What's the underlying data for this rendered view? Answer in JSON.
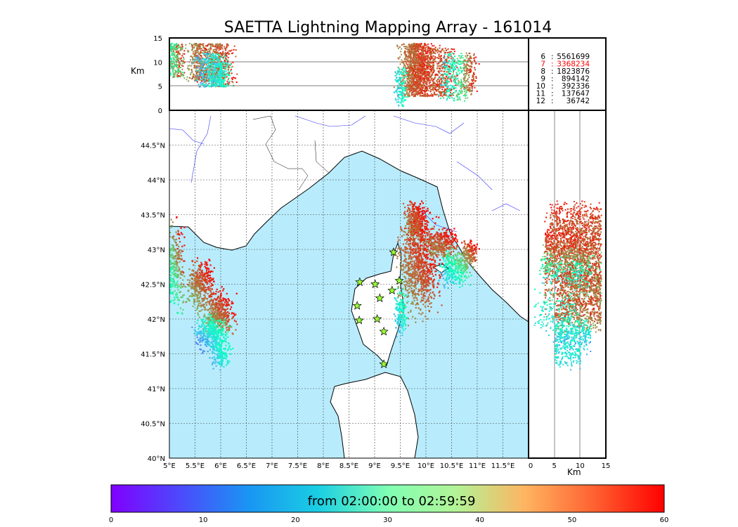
{
  "chart_data": {
    "type": "scatter",
    "title": "SAETTA Lightning Mapping Array - 161014",
    "map": {
      "xlim": [
        5,
        12
      ],
      "ylim": [
        40,
        45
      ],
      "xticks": [
        "5°E",
        "5.5°E",
        "6°E",
        "6.5°E",
        "7°E",
        "7.5°E",
        "8°E",
        "8.5°E",
        "9°E",
        "9.5°E",
        "10°E",
        "10.5°E",
        "11°E",
        "11.5°E"
      ],
      "yticks": [
        "40°N",
        "40.5°N",
        "41°N",
        "41.5°N",
        "42°N",
        "42.5°N",
        "43°N",
        "43.5°N",
        "44°N",
        "44.5°N"
      ],
      "grid": true
    },
    "top_panel": {
      "ylabel": "Km",
      "ylim": [
        0,
        15
      ],
      "yticks": [
        "0",
        "5",
        "10",
        "15"
      ]
    },
    "right_panel": {
      "xlabel": "Km",
      "xlim": [
        0,
        15
      ],
      "xticks": [
        "0",
        "5",
        "10",
        "15"
      ]
    },
    "legend": {
      "placement": "top-right",
      "entries": [
        {
          "label": "6",
          "count": "5561699",
          "highlight": false
        },
        {
          "label": "7",
          "count": "3368234",
          "highlight": true
        },
        {
          "label": "8",
          "count": "1823876",
          "highlight": false
        },
        {
          "label": "9",
          "count": "894142",
          "highlight": false
        },
        {
          "label": "10",
          "count": "392336",
          "highlight": false
        },
        {
          "label": "11",
          "count": "137647",
          "highlight": false
        },
        {
          "label": "12",
          "count": "36742",
          "highlight": false
        }
      ],
      "highlight_color": "#ff0000"
    },
    "colorbar": {
      "label": "from 02:00:00 to 02:59:59",
      "range": [
        0,
        60
      ],
      "ticks": [
        "0",
        "10",
        "20",
        "30",
        "40",
        "50",
        "60"
      ],
      "colormap": "rainbow"
    },
    "stations": [
      [
        8.71,
        42.53
      ],
      [
        9.01,
        42.5
      ],
      [
        9.1,
        42.3
      ],
      [
        8.66,
        42.19
      ],
      [
        8.7,
        41.98
      ],
      [
        9.05,
        42.0
      ],
      [
        9.18,
        41.82
      ],
      [
        9.34,
        42.41
      ],
      [
        9.48,
        42.55
      ],
      [
        9.37,
        42.96
      ],
      [
        9.18,
        41.35
      ]
    ],
    "clusters": [
      {
        "lon": 5.1,
        "lat": 42.75,
        "slon": 0.09,
        "slat": 0.3,
        "t": [
          25,
          60
        ],
        "n": 300,
        "alt": [
          7,
          14
        ]
      },
      {
        "lon": 5.6,
        "lat": 42.5,
        "slon": 0.12,
        "slat": 0.16,
        "t": [
          45,
          60
        ],
        "n": 400,
        "alt": [
          6,
          14
        ]
      },
      {
        "lon": 5.95,
        "lat": 42.1,
        "slon": 0.14,
        "slat": 0.14,
        "t": [
          45,
          60
        ],
        "n": 450,
        "alt": [
          5,
          14
        ]
      },
      {
        "lon": 5.8,
        "lat": 41.8,
        "slon": 0.16,
        "slat": 0.12,
        "t": [
          10,
          35
        ],
        "n": 350,
        "alt": [
          5,
          12
        ]
      },
      {
        "lon": 5.98,
        "lat": 41.5,
        "slon": 0.08,
        "slat": 0.1,
        "t": [
          15,
          30
        ],
        "n": 150,
        "alt": [
          5,
          10
        ]
      },
      {
        "lon": 9.8,
        "lat": 43.4,
        "slon": 0.1,
        "slat": 0.14,
        "t": [
          48,
          60
        ],
        "n": 450,
        "alt": [
          4,
          14
        ]
      },
      {
        "lon": 9.85,
        "lat": 42.75,
        "slon": 0.18,
        "slat": 0.3,
        "t": [
          48,
          60
        ],
        "n": 900,
        "alt": [
          3,
          14
        ]
      },
      {
        "lon": 10.3,
        "lat": 43.1,
        "slon": 0.15,
        "slat": 0.1,
        "t": [
          48,
          60
        ],
        "n": 350,
        "alt": [
          3,
          13
        ]
      },
      {
        "lon": 10.55,
        "lat": 42.75,
        "slon": 0.14,
        "slat": 0.12,
        "t": [
          15,
          50
        ],
        "n": 300,
        "alt": [
          2,
          12
        ]
      },
      {
        "lon": 10.85,
        "lat": 42.95,
        "slon": 0.07,
        "slat": 0.08,
        "t": [
          45,
          60
        ],
        "n": 150,
        "alt": [
          4,
          12
        ]
      },
      {
        "lon": 9.5,
        "lat": 42.1,
        "slon": 0.06,
        "slat": 0.15,
        "t": [
          15,
          32
        ],
        "n": 150,
        "alt": [
          1,
          9
        ]
      }
    ]
  }
}
